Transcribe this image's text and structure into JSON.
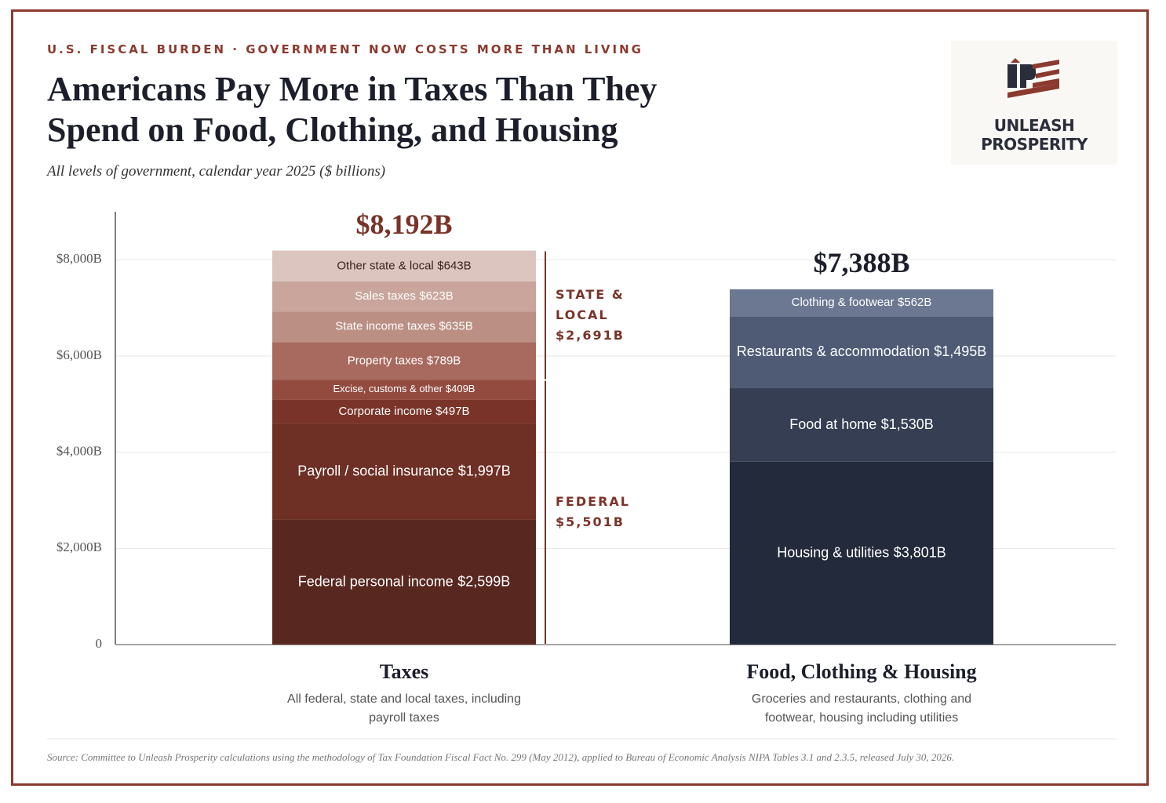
{
  "chart_data": {
    "type": "stacked_bar",
    "kicker": "U.S. FISCAL BURDEN · GOVERNMENT NOW COSTS MORE THAN LIVING",
    "title": "Americans Pay More in Taxes Than They Spend on Food, Clothing, and Housing",
    "subtitle": "All levels of government, calendar year 2025  ($ billions)",
    "logo_text": "UNLEASH PROSPERITY",
    "categories": [
      "Taxes",
      "Food, Clothing & Housing"
    ],
    "category_notes": [
      "All federal, state and local taxes, including payroll taxes",
      "Groceries and restaurants, clothing and footwear, housing including utilities"
    ],
    "totals": {
      "values": [
        8192,
        7388
      ],
      "value_labels": [
        "$8,192B",
        "$7,388B"
      ],
      "colors": [
        "#7a3328",
        "#1c1f2b"
      ]
    },
    "series": [
      {
        "name": "Federal personal income",
        "color": "#582820",
        "values": [
          2599,
          null
        ],
        "value_labels": [
          "$2,599B",
          null
        ]
      },
      {
        "name": "Payroll / social insurance",
        "color": "#6e2f25",
        "values": [
          1997,
          null
        ],
        "value_labels": [
          "$1,997B",
          null
        ]
      },
      {
        "name": "Corporate income",
        "color": "#7a3328",
        "values": [
          497,
          null
        ],
        "value_labels": [
          "$497B",
          null
        ]
      },
      {
        "name": "Excise, customs & other",
        "color": "#934a3f",
        "values": [
          409,
          null
        ],
        "value_labels": [
          "$409B",
          null
        ]
      },
      {
        "name": "Property taxes",
        "color": "#a86a5e",
        "values": [
          789,
          null
        ],
        "value_labels": [
          "$789B",
          null
        ]
      },
      {
        "name": "State income taxes",
        "color": "#bb8f84",
        "values": [
          635,
          null
        ],
        "value_labels": [
          "$635B",
          null
        ]
      },
      {
        "name": "Sales taxes",
        "color": "#c9a59b",
        "values": [
          623,
          null
        ],
        "value_labels": [
          "$623B",
          null
        ]
      },
      {
        "name": "Other state & local",
        "color": "#dcc5bf",
        "values": [
          643,
          null
        ],
        "value_labels": [
          "$643B",
          null
        ]
      },
      {
        "name": "Housing & utilities",
        "color": "#232a3b",
        "values": [
          null,
          3801
        ],
        "value_labels": [
          null,
          "$3,801B"
        ]
      },
      {
        "name": "Food at home",
        "color": "#353e53",
        "values": [
          null,
          1530
        ],
        "value_labels": [
          null,
          "$1,530B"
        ]
      },
      {
        "name": "Restaurants & accommodation",
        "color": "#4f5b75",
        "values": [
          null,
          1495
        ],
        "value_labels": [
          null,
          "$1,495B"
        ]
      },
      {
        "name": "Clothing & footwear",
        "color": "#6c7892",
        "values": [
          null,
          562
        ],
        "value_labels": [
          null,
          "$562B"
        ]
      }
    ],
    "groups": [
      {
        "label": "FEDERAL",
        "value": 5501,
        "value_label": "$5,501B",
        "color": "#7a3328"
      },
      {
        "label": "STATE & LOCAL",
        "value": 2691,
        "value_label": "$2,691B",
        "color": "#7a3328"
      }
    ],
    "ylim": [
      0,
      9000
    ],
    "yticks": [
      0,
      {
        "value": 2000,
        "label": "$2,000B"
      },
      {
        "value": 4000,
        "label": "$4,000B"
      },
      {
        "value": 6000,
        "label": "$6,000B"
      },
      {
        "value": 8000,
        "label": "$8,000B"
      }
    ],
    "grid": true,
    "source": "Source: Committee to Unleash Prosperity calculations using the methodology of Tax Foundation Fiscal Fact No. 299 (May 2012), applied to Bureau of Economic Analysis NIPA Tables 3.1 and 2.3.5, released July 30, 2026."
  }
}
